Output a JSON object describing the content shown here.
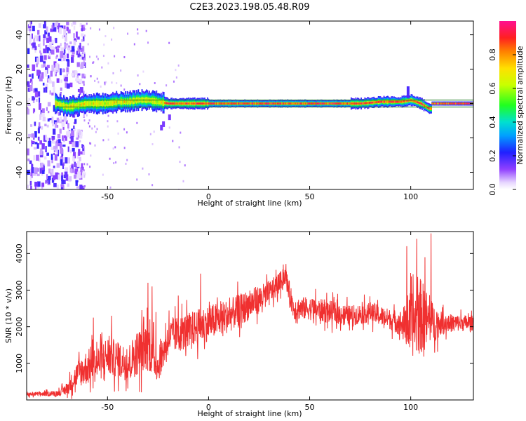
{
  "title": "C2E3.2023.198.05.48.R09",
  "chart_data": [
    {
      "type": "heatmap",
      "xlabel": "Height of straight line (km)",
      "ylabel": "Frequency (Hz)",
      "xlim": [
        -90,
        131
      ],
      "ylim": [
        -50,
        48
      ],
      "x_ticks": [
        -50,
        0,
        50,
        100
      ],
      "y_ticks": [
        -40,
        -20,
        0,
        20,
        40
      ],
      "colorbar": {
        "label": "Normalized spectral amplitude",
        "range": [
          0,
          1
        ],
        "ticks": [
          "0.0",
          "0.2",
          "0.4",
          "0.6",
          "0.8"
        ],
        "tick_values": [
          0,
          0.2,
          0.4,
          0.6,
          0.8
        ]
      },
      "reference_lines_hz": [
        2,
        -2
      ],
      "reference_line_color": "#1a7a1a",
      "ridge": {
        "description_values": "dominant frequency vs height",
        "points": [
          [
            -75,
            0
          ],
          [
            -70,
            -2
          ],
          [
            -65,
            -1
          ],
          [
            -60,
            0
          ],
          [
            -55,
            0
          ],
          [
            -50,
            0
          ],
          [
            -45,
            1
          ],
          [
            -40,
            1
          ],
          [
            -35,
            2
          ],
          [
            -30,
            2
          ],
          [
            -25,
            1
          ],
          [
            -20,
            0
          ],
          [
            -10,
            0
          ],
          [
            0,
            0
          ],
          [
            20,
            0
          ],
          [
            40,
            0
          ],
          [
            60,
            0
          ],
          [
            75,
            0
          ],
          [
            85,
            1
          ],
          [
            95,
            1
          ],
          [
            100,
            2
          ],
          [
            105,
            0
          ],
          [
            109,
            -3
          ]
        ],
        "end_km": 110,
        "band_extends_to_km": 131
      },
      "noise_region_km": [
        -90,
        -62
      ]
    },
    {
      "type": "line",
      "xlabel": "Height of straight line (km)",
      "ylabel": "SNR (10 * v/v)",
      "xlim": [
        -90,
        131
      ],
      "ylim": [
        0,
        4600
      ],
      "x_ticks": [
        -50,
        0,
        50,
        100
      ],
      "y_ticks": [
        1000,
        2000,
        3000,
        4000
      ],
      "line_color": "#f03030",
      "envelope": {
        "x": [
          -90,
          -75,
          -70,
          -65,
          -60,
          -55,
          -50,
          -45,
          -40,
          -35,
          -30,
          -25,
          -20,
          -15,
          -10,
          -5,
          0,
          10,
          20,
          30,
          35,
          38,
          42,
          50,
          60,
          70,
          80,
          90,
          95,
          100,
          105,
          110,
          115,
          120,
          131
        ],
        "mean": [
          150,
          180,
          300,
          700,
          900,
          1000,
          1200,
          1100,
          1000,
          1300,
          1500,
          900,
          1700,
          1800,
          1900,
          2000,
          2100,
          2300,
          2600,
          2900,
          3200,
          3400,
          2500,
          2500,
          2400,
          2300,
          2400,
          2200,
          2100,
          2000,
          2300,
          2100,
          2100,
          2100,
          2100
        ],
        "spread": [
          80,
          100,
          250,
          500,
          700,
          700,
          800,
          700,
          700,
          900,
          1000,
          600,
          700,
          700,
          700,
          700,
          700,
          650,
          600,
          500,
          400,
          350,
          450,
          450,
          450,
          400,
          400,
          400,
          500,
          1200,
          1500,
          900,
          450,
          350,
          300
        ]
      },
      "spikes": [
        [
          -57,
          2250
        ],
        [
          -48,
          2300
        ],
        [
          -30,
          3200
        ],
        [
          -28,
          3100
        ],
        [
          -26,
          2400
        ],
        [
          -15,
          2850
        ],
        [
          -4,
          3450
        ],
        [
          37,
          3700
        ],
        [
          98,
          4200
        ],
        [
          103,
          4400
        ],
        [
          110,
          4550
        ],
        [
          107,
          3900
        ]
      ]
    }
  ]
}
